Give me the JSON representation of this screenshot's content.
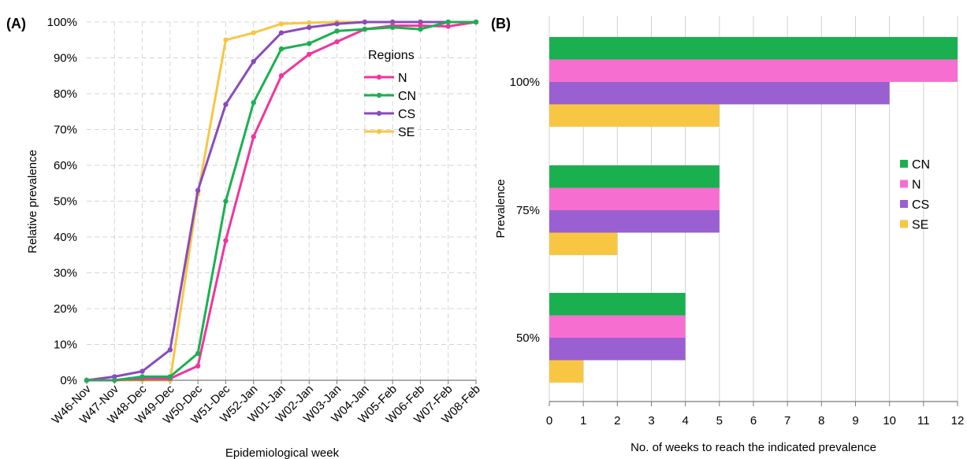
{
  "colors": {
    "N": "#f0359f",
    "CN": "#1ab050",
    "CS": "#8a4bbd",
    "SE": "#f7c744"
  },
  "chart_data": [
    {
      "type": "line",
      "panel_label": "(A)",
      "xlabel": "Epidemiological week",
      "ylabel": "Relative prevalence",
      "x": [
        "W46-Nov",
        "W47-Nov",
        "W48-Dec",
        "W49-Dec",
        "W50-Dec",
        "W51-Dec",
        "W52-Jan",
        "W01-Jan",
        "W02-Jan",
        "W03-Jan",
        "W04-Jan",
        "W05-Feb",
        "W06-Feb",
        "W07-Feb",
        "W08-Feb"
      ],
      "ylim": [
        0,
        100
      ],
      "yticks": [
        "0%",
        "10%",
        "20%",
        "30%",
        "40%",
        "50%",
        "60%",
        "70%",
        "80%",
        "90%",
        "100%"
      ],
      "grid": true,
      "legend": {
        "title": "Regions",
        "placement": "top-right"
      },
      "series": [
        {
          "name": "N",
          "color": "#f0359f",
          "values": [
            0,
            0,
            0.5,
            0.5,
            4,
            39,
            68,
            85,
            91,
            94.5,
            98,
            99,
            99,
            98.8,
            100
          ]
        },
        {
          "name": "CN",
          "color": "#1ab050",
          "values": [
            0,
            0,
            1,
            1,
            7.5,
            50,
            77.5,
            92.5,
            94,
            97.5,
            98,
            98.5,
            98,
            100,
            100
          ]
        },
        {
          "name": "CS",
          "color": "#8a4bbd",
          "values": [
            0,
            1,
            2.5,
            8.5,
            53,
            77,
            89,
            97,
            98.5,
            99.5,
            100,
            100,
            100,
            100,
            100
          ]
        },
        {
          "name": "SE",
          "color": "#f7c744",
          "values": [
            0,
            0,
            0,
            0,
            52,
            95,
            97,
            99.5,
            99.8,
            100,
            100,
            100,
            100,
            100,
            100
          ]
        }
      ]
    },
    {
      "type": "bar",
      "orientation": "horizontal",
      "panel_label": "(B)",
      "xlabel": "No. of weeks to reach the indicated prevalence",
      "ylabel": "Prevalence",
      "categories": [
        "100%",
        "75%",
        "50%"
      ],
      "xlim": [
        0,
        12
      ],
      "xticks": [
        "0",
        "1",
        "2",
        "3",
        "4",
        "5",
        "6",
        "7",
        "8",
        "9",
        "10",
        "11",
        "12"
      ],
      "grid": true,
      "legend": {
        "placement": "right"
      },
      "series": [
        {
          "name": "CN",
          "color": "#1ab050",
          "values": [
            12,
            5,
            4
          ]
        },
        {
          "name": "N",
          "color": "#f66fd0",
          "values": [
            12,
            5,
            4
          ]
        },
        {
          "name": "CS",
          "color": "#9a5fd0",
          "values": [
            10,
            5,
            4
          ]
        },
        {
          "name": "SE",
          "color": "#f7c744",
          "values": [
            5,
            2,
            1
          ]
        }
      ]
    }
  ]
}
